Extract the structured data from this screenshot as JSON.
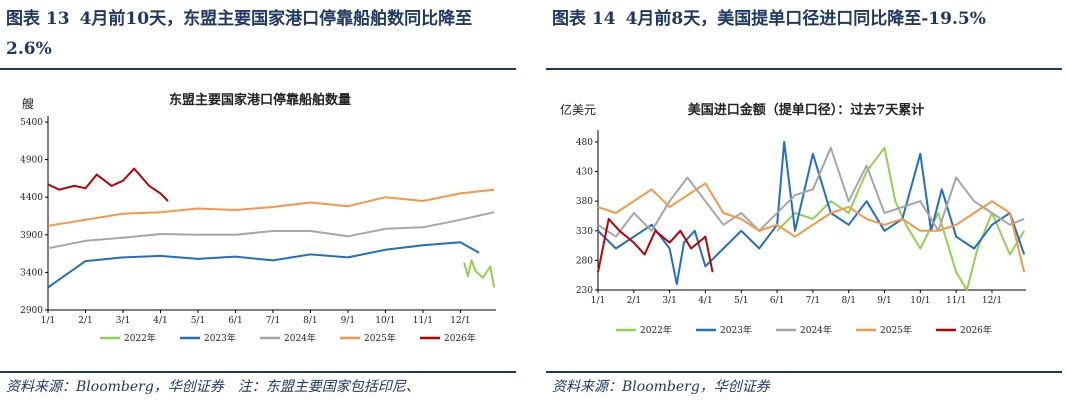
{
  "left": {
    "figure_no": "图表 13",
    "title": "4月前10天，东盟主要国家港口停靠船舶数同比降至2.6%",
    "source": "资料来源：Bloomberg，华创证券　注：东盟主要国家包括印尼、"
  },
  "right": {
    "figure_no": "图表 14",
    "title": "4月前8天，美国提单口径进口同比降至-19.5%",
    "source": "资料来源：Bloomberg，华创证券"
  },
  "chart_data": [
    {
      "type": "line",
      "title": "东盟主要国家港口停靠船舶数量",
      "ylabel": "艘",
      "ylim": [
        2900,
        5400
      ],
      "yticks": [
        "2900",
        "3400",
        "3900",
        "4400",
        "4900",
        "5400"
      ],
      "xticks": [
        "1/1",
        "2/1",
        "3/1",
        "4/1",
        "5/1",
        "6/1",
        "7/1",
        "8/1",
        "9/1",
        "10/1",
        "11/1",
        "12/1"
      ],
      "legend_position": "bottom",
      "series": [
        {
          "name": "2022年",
          "color": "#92d050",
          "x": [
            12.1,
            12.2,
            12.3,
            12.4,
            12.6,
            12.8,
            12.9
          ],
          "values": [
            3530,
            3350,
            3560,
            3420,
            3330,
            3480,
            3200
          ]
        },
        {
          "name": "2023年",
          "color": "#1f6fc5",
          "x": [
            1,
            2,
            3,
            4,
            5,
            6,
            7,
            8,
            9,
            10,
            11,
            12,
            12.5
          ],
          "values": [
            3200,
            3550,
            3600,
            3620,
            3580,
            3610,
            3560,
            3640,
            3600,
            3700,
            3760,
            3800,
            3660
          ]
        },
        {
          "name": "2024年",
          "color": "#a6a6a6",
          "x": [
            1,
            2,
            3,
            4,
            5,
            6,
            7,
            8,
            9,
            10,
            11,
            12,
            12.9
          ],
          "values": [
            3720,
            3820,
            3860,
            3910,
            3900,
            3900,
            3950,
            3950,
            3880,
            3980,
            4000,
            4100,
            4200
          ]
        },
        {
          "name": "2025年",
          "color": "#f79646",
          "x": [
            1,
            2,
            3,
            4,
            5,
            6,
            7,
            8,
            9,
            10,
            11,
            12,
            12.9
          ],
          "values": [
            4020,
            4100,
            4180,
            4200,
            4250,
            4230,
            4270,
            4330,
            4280,
            4400,
            4350,
            4450,
            4500
          ]
        },
        {
          "name": "2026年",
          "color": "#c00000",
          "x": [
            1,
            1.3,
            1.7,
            2,
            2.3,
            2.7,
            3,
            3.3,
            3.7,
            4,
            4.2
          ],
          "values": [
            4570,
            4500,
            4550,
            4520,
            4700,
            4550,
            4620,
            4780,
            4550,
            4450,
            4350
          ]
        }
      ]
    },
    {
      "type": "line",
      "title": "美国进口金额（提单口径）：过去7天累计",
      "ylabel": "亿美元",
      "ylim": [
        230,
        490
      ],
      "yticks": [
        "230",
        "280",
        "330",
        "380",
        "430",
        "480"
      ],
      "xticks": [
        "1/1",
        "2/1",
        "3/1",
        "4/1",
        "5/1",
        "6/1",
        "7/1",
        "8/1",
        "9/1",
        "10/1",
        "11/1",
        "12/1"
      ],
      "legend_position": "bottom",
      "series": [
        {
          "name": "2022年",
          "color": "#92d050",
          "x": [
            6,
            6.5,
            7,
            7.5,
            8,
            8.5,
            9,
            9.3,
            9.6,
            10,
            10.5,
            11,
            11.3,
            11.6,
            12,
            12.5,
            12.9
          ],
          "values": [
            330,
            360,
            350,
            380,
            360,
            430,
            470,
            380,
            340,
            300,
            360,
            260,
            230,
            300,
            360,
            290,
            330
          ]
        },
        {
          "name": "2023年",
          "color": "#1f6fc5",
          "x": [
            1,
            1.5,
            2,
            2.5,
            3,
            3.2,
            3.4,
            3.7,
            4,
            4.5,
            5,
            5.5,
            6,
            6.2,
            6.5,
            7,
            7.5,
            8,
            8.5,
            9,
            9.5,
            10,
            10.3,
            10.6,
            11,
            11.5,
            12,
            12.5,
            12.9
          ],
          "values": [
            330,
            300,
            320,
            340,
            300,
            240,
            310,
            330,
            270,
            300,
            330,
            300,
            340,
            480,
            330,
            460,
            360,
            340,
            380,
            330,
            350,
            460,
            330,
            400,
            320,
            300,
            340,
            360,
            290
          ]
        },
        {
          "name": "2024年",
          "color": "#a6a6a6",
          "x": [
            1,
            1.5,
            2,
            2.5,
            3,
            3.5,
            4,
            4.5,
            5,
            5.5,
            6,
            6.5,
            7,
            7.5,
            8,
            8.5,
            9,
            9.5,
            10,
            10.5,
            11,
            11.5,
            12,
            12.5,
            12.9
          ],
          "values": [
            340,
            320,
            360,
            330,
            380,
            420,
            380,
            340,
            360,
            330,
            360,
            390,
            400,
            470,
            380,
            440,
            360,
            370,
            380,
            330,
            420,
            380,
            360,
            340,
            350
          ]
        },
        {
          "name": "2025年",
          "color": "#f79646",
          "x": [
            1,
            1.5,
            2,
            2.5,
            3,
            3.5,
            4,
            4.5,
            5,
            5.5,
            6,
            6.5,
            7,
            7.5,
            8,
            8.5,
            9,
            9.5,
            10,
            10.5,
            11,
            11.5,
            12,
            12.5,
            12.9
          ],
          "values": [
            370,
            360,
            380,
            400,
            370,
            390,
            410,
            360,
            350,
            330,
            340,
            320,
            340,
            360,
            370,
            350,
            340,
            350,
            330,
            330,
            340,
            360,
            380,
            360,
            260
          ]
        },
        {
          "name": "2026年",
          "color": "#c00000",
          "x": [
            1,
            1.3,
            1.6,
            2,
            2.3,
            2.6,
            3,
            3.3,
            3.6,
            4,
            4.2
          ],
          "values": [
            260,
            350,
            330,
            310,
            290,
            330,
            310,
            330,
            300,
            320,
            260
          ]
        }
      ]
    }
  ]
}
